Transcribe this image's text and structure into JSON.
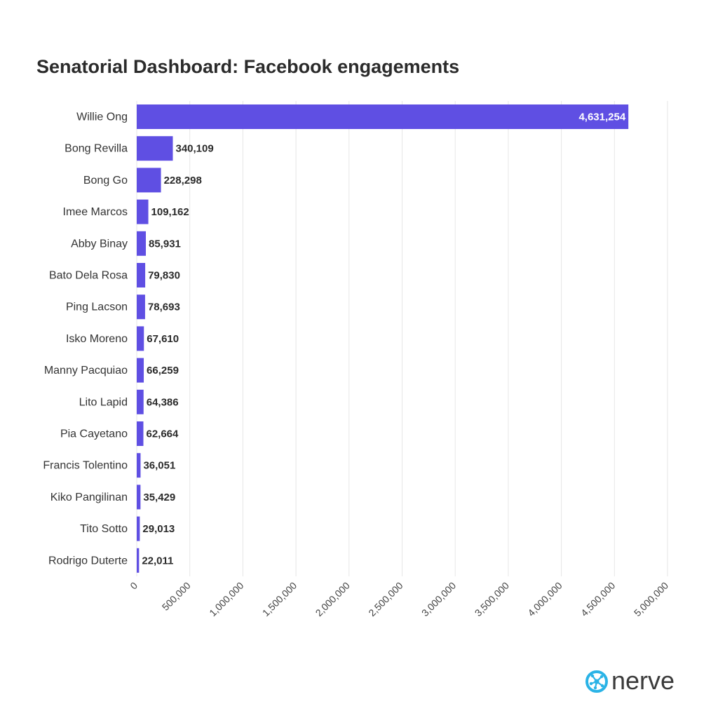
{
  "title": "Senatorial Dashboard: Facebook engagements",
  "brand": {
    "name": "nerve",
    "text_color": "#3a3a3a",
    "icon_color": "#2ab3e6"
  },
  "colors": {
    "bar": "#5f4fe3",
    "grid": "#e6e6e6",
    "label": "#333333",
    "value": "#2b2b2b"
  },
  "chart_data": {
    "type": "bar",
    "orientation": "horizontal",
    "title": "Senatorial Dashboard: Facebook engagements",
    "xlabel": "",
    "ylabel": "",
    "xlim": [
      0,
      5000000
    ],
    "grid": true,
    "legend": "none",
    "x_ticks": [
      0,
      500000,
      1000000,
      1500000,
      2000000,
      2500000,
      3000000,
      3500000,
      4000000,
      4500000,
      5000000
    ],
    "x_tick_labels": [
      "0",
      "500,000",
      "1,000,000",
      "1,500,000",
      "2,000,000",
      "2,500,000",
      "3,000,000",
      "3,500,000",
      "4,000,000",
      "4,500,000",
      "5,000,000"
    ],
    "categories": [
      "Willie Ong",
      "Bong Revilla",
      "Bong Go",
      "Imee Marcos",
      "Abby Binay",
      "Bato Dela Rosa",
      "Ping Lacson",
      "Isko Moreno",
      "Manny Pacquiao",
      "Lito Lapid",
      "Pia Cayetano",
      "Francis Tolentino",
      "Kiko Pangilinan",
      "Tito Sotto",
      "Rodrigo Duterte"
    ],
    "values": [
      4631254,
      340109,
      228298,
      109162,
      85931,
      79830,
      78693,
      67610,
      66259,
      64386,
      62664,
      36051,
      35429,
      29013,
      22011
    ],
    "value_labels": [
      "4,631,254",
      "340,109",
      "228,298",
      "109,162",
      "85,931",
      "79,830",
      "78,693",
      "67,610",
      "66,259",
      "64,386",
      "62,664",
      "36,051",
      "35,429",
      "29,013",
      "22,011"
    ]
  }
}
